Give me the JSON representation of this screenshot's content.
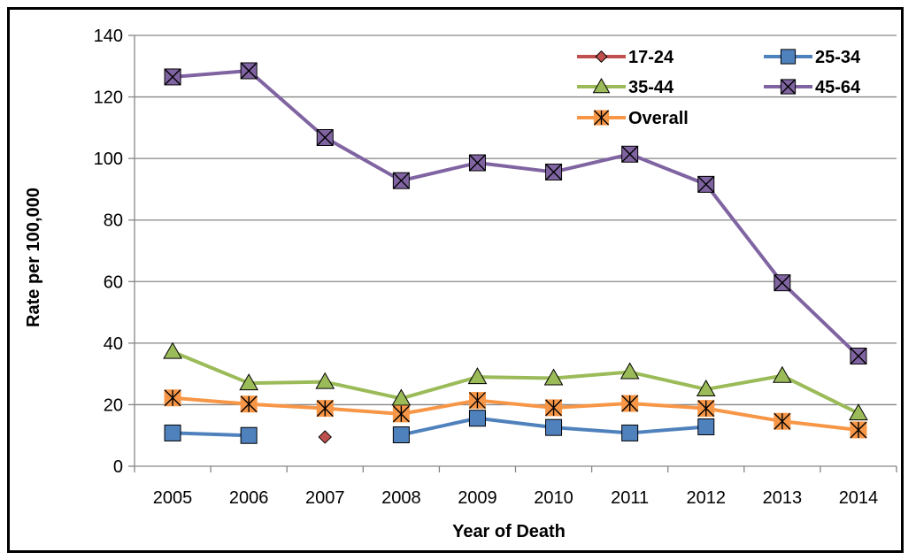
{
  "chart_data": {
    "type": "line",
    "title": "",
    "xlabel": "Year of Death",
    "ylabel": "Rate per 100,000",
    "categories": [
      "2005",
      "2006",
      "2007",
      "2008",
      "2009",
      "2010",
      "2011",
      "2012",
      "2013",
      "2014"
    ],
    "ylim": [
      0,
      140
    ],
    "yticks": [
      0,
      20,
      40,
      60,
      80,
      100,
      120,
      140
    ],
    "grid": "horizontal",
    "legend_position": "top-right",
    "series": [
      {
        "name": "17-24",
        "color": "#C0504D",
        "marker": "diamond",
        "values": [
          null,
          null,
          9.5,
          null,
          null,
          null,
          null,
          null,
          null,
          null
        ]
      },
      {
        "name": "25-34",
        "color": "#4F81BD",
        "marker": "square",
        "values": [
          10.8,
          10.0,
          null,
          10.2,
          15.6,
          12.6,
          10.8,
          12.8,
          null,
          null
        ]
      },
      {
        "name": "35-44",
        "color": "#9BBB59",
        "marker": "triangle",
        "values": [
          37.2,
          27.0,
          27.4,
          22.0,
          29.0,
          28.6,
          30.6,
          25.0,
          29.4,
          17.2
        ]
      },
      {
        "name": "45-64",
        "color": "#8064A2",
        "marker": "x",
        "values": [
          126.5,
          128.5,
          106.8,
          92.8,
          98.6,
          95.6,
          101.4,
          91.6,
          59.6,
          35.8
        ]
      },
      {
        "name": "Overall",
        "color": "#F79646",
        "marker": "star",
        "values": [
          22.2,
          20.2,
          18.8,
          17.0,
          21.4,
          19.0,
          20.4,
          18.8,
          14.6,
          11.8
        ]
      }
    ]
  }
}
